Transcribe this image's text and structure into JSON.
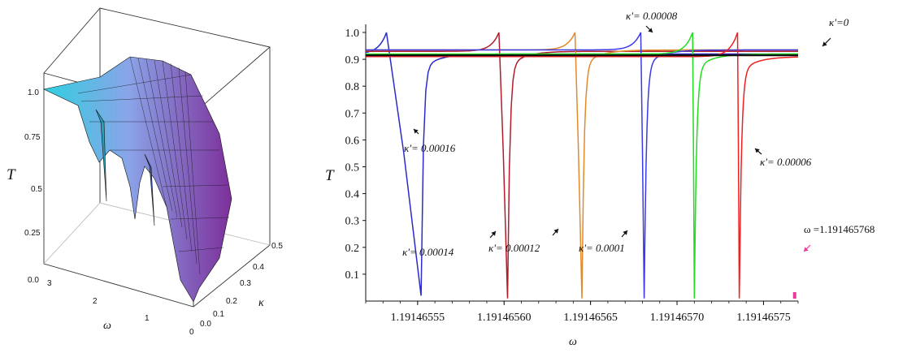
{
  "chart_data": [
    {
      "type": "surface",
      "xlabel": "ω",
      "ylabel": "κ",
      "zlabel": "T",
      "x_ticks": [
        "3",
        "2",
        "1",
        "0"
      ],
      "y_ticks": [
        "0.0",
        "0.1",
        "0.2",
        "0.3",
        "0.4",
        "0.5"
      ],
      "z_ticks": [
        "0.0",
        "0.25",
        "0.5",
        "0.75",
        "1.0"
      ],
      "xlim": [
        0,
        3
      ],
      "ylim": [
        0,
        0.5
      ],
      "zlim": [
        0,
        1.0
      ],
      "colors": {
        "low": "#2fd0e0",
        "mid": "#8aa4e8",
        "high": "#7d2f9a",
        "edge": "#111111"
      }
    },
    {
      "type": "line",
      "xlabel": "ω",
      "ylabel": "T",
      "xlim": [
        1.19146552,
        1.19146577
      ],
      "ylim": [
        0,
        1.0
      ],
      "x_ticks": [
        "1.19146555",
        "1.19146560",
        "1.19146565",
        "1.19146570",
        "1.19146575"
      ],
      "x_tick_values": [
        1.19146555,
        1.1914656,
        1.19146565,
        1.1914657,
        1.19146575
      ],
      "y_ticks": [
        "0.1",
        "0.2",
        "0.3",
        "0.4",
        "0.5",
        "0.6",
        "0.7",
        "0.8",
        "0.9",
        "1.0"
      ],
      "y_tick_values": [
        0.1,
        0.2,
        0.3,
        0.4,
        0.5,
        0.6,
        0.7,
        0.8,
        0.9,
        1.0
      ],
      "series": [
        {
          "name": "κ'= 0.00016",
          "color": "#2b2bc8",
          "baseline": 0.92,
          "peak_x": 1.191465532,
          "peak_y": 1.0,
          "dip_x": 1.191465552,
          "dip_y": 0.02
        },
        {
          "name": "κ'= 0.00014",
          "color": "#b01c2a",
          "baseline": 0.93,
          "peak_x": 1.191465597,
          "peak_y": 1.0,
          "dip_x": 1.191465602,
          "dip_y": 0.01
        },
        {
          "name": "κ'= 0.00012",
          "color": "#e08a2c",
          "baseline": 0.935,
          "peak_x": 1.191465641,
          "peak_y": 1.0,
          "dip_x": 1.191465645,
          "dip_y": 0.01
        },
        {
          "name": "κ'= 0.0001",
          "color": "#3a3ae8",
          "baseline": 0.935,
          "peak_x": 1.191465679,
          "peak_y": 1.0,
          "dip_x": 1.191465681,
          "dip_y": 0.01
        },
        {
          "name": "κ'= 0.00008",
          "color": "#22dd22",
          "baseline": 0.92,
          "peak_x": 1.191465709,
          "peak_y": 1.0,
          "dip_x": 1.19146571,
          "dip_y": 0.01
        },
        {
          "name": "κ'= 0.00006",
          "color": "#ee2020",
          "baseline": 0.91,
          "peak_x": 1.191465735,
          "peak_y": 1.0,
          "dip_x": 1.191465736,
          "dip_y": 0.01
        },
        {
          "name": "κ'=0",
          "color": "#111111",
          "baseline": 0.915,
          "flat": true
        }
      ],
      "annotations": [
        {
          "text": "κ'=0",
          "target_x": 1.1914657636,
          "target_y": 0.925
        },
        {
          "text": "κ'= 0.00008",
          "target_x": 1.1914657075,
          "target_y": 0.955
        },
        {
          "text": "κ'= 0.00016",
          "target_x": 1.191465554,
          "target_y": 0.615
        },
        {
          "text": "κ'= 0.00006",
          "target_x": 1.191465738,
          "target_y": 0.6
        },
        {
          "text": "κ'= 0.00014",
          "target_x": 1.191465589,
          "target_y": 0.27
        },
        {
          "text": "κ'= 0.00012",
          "target_x": 1.191465626,
          "target_y": 0.27
        },
        {
          "text": "κ'= 0.0001",
          "target_x": 1.191465661,
          "target_y": 0.27
        },
        {
          "text": "ω =1.191465768",
          "target_x": 1.191465768,
          "target_y": 0.035
        }
      ],
      "marker": {
        "x": 1.191465768,
        "y": 0.015,
        "color": "#e83a9a"
      }
    }
  ]
}
